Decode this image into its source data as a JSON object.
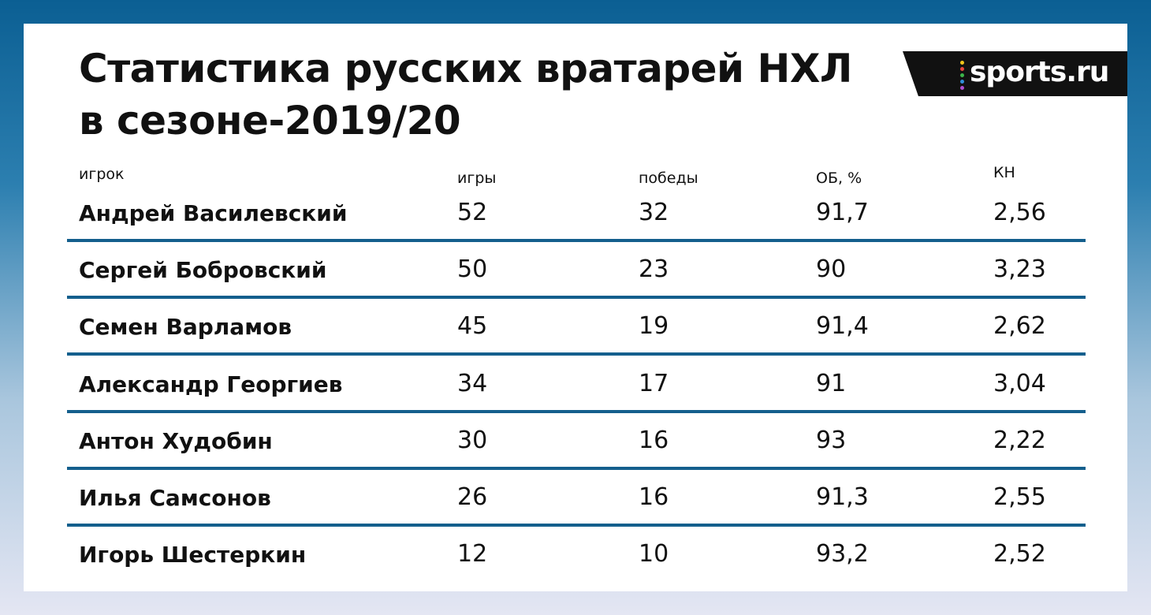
{
  "header": {
    "title_lines": [
      "Статистика русских вратарей НХЛ",
      "в сезоне-2019/20"
    ],
    "logo": "sports.ru"
  },
  "table": {
    "columns": [
      "игрок",
      "игры",
      "победы",
      "ОБ, %",
      "КН"
    ],
    "rows": [
      [
        "Андрей Василевский",
        "52",
        "32",
        "91,7",
        "2,56"
      ],
      [
        "Сергей Бобровский",
        "50",
        "23",
        "90",
        "3,23"
      ],
      [
        "Семен Варламов",
        "45",
        "19",
        "91,4",
        "2,62"
      ],
      [
        "Александр Георгиев",
        "34",
        "17",
        "91",
        "3,04"
      ],
      [
        "Антон Худобин",
        "30",
        "16",
        "93",
        "2,22"
      ],
      [
        "Илья Самсонов",
        "26",
        "16",
        "91,3",
        "2,55"
      ],
      [
        "Игорь Шестеркин",
        "12",
        "10",
        "93,2",
        "2,52"
      ]
    ]
  }
}
